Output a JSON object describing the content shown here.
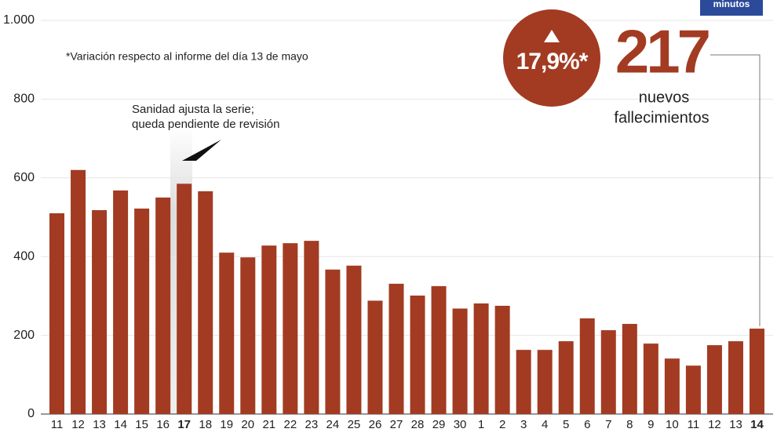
{
  "chart_data": {
    "type": "bar",
    "categories": [
      "11",
      "12",
      "13",
      "14",
      "15",
      "16",
      "17",
      "18",
      "19",
      "20",
      "21",
      "22",
      "23",
      "24",
      "25",
      "26",
      "27",
      "28",
      "29",
      "30",
      "1",
      "2",
      "3",
      "4",
      "5",
      "6",
      "7",
      "8",
      "9",
      "10",
      "11",
      "12",
      "13",
      "14"
    ],
    "values": [
      510,
      620,
      518,
      568,
      522,
      550,
      585,
      566,
      410,
      398,
      428,
      434,
      440,
      367,
      377,
      288,
      331,
      301,
      325,
      268,
      281,
      275,
      163,
      163,
      185,
      243,
      213,
      229,
      179,
      141,
      123,
      175,
      185,
      217
    ],
    "color": "#a23b22",
    "ylim": [
      0,
      1000
    ],
    "yticks": [
      0,
      200,
      400,
      600,
      800,
      {
        "value": 1000,
        "label": "1.000"
      }
    ],
    "grid": true,
    "bold_categories": [
      6,
      33
    ],
    "annotations": {
      "note": "*Variación respecto al informe del día 13 de mayo",
      "revision_line1": "Sanidad ajusta la serie;",
      "revision_line2": "queda pendiente de revisión",
      "change": "17,9%*",
      "label_line1": "nuevos",
      "label_line2": "fallecimientos",
      "logo": "minutos"
    }
  }
}
